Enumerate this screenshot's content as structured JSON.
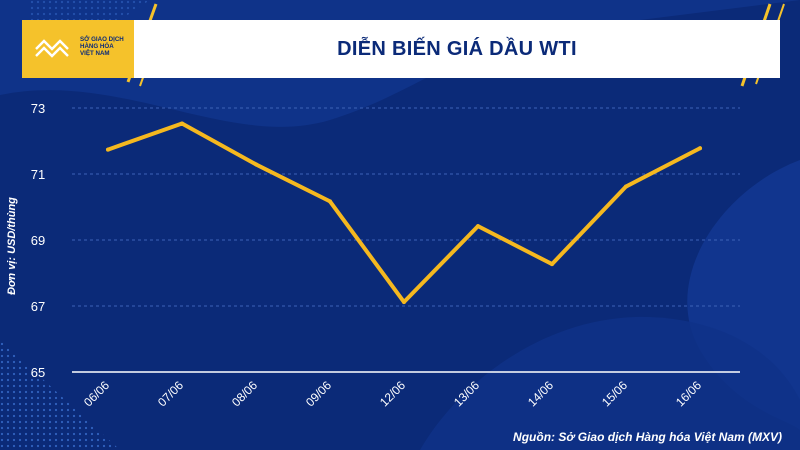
{
  "header": {
    "title": "DIỄN BIẾN GIÁ DẦU WTI",
    "logo_lines": [
      "SỞ GIAO DỊCH",
      "HÀNG HÓA",
      "VIỆT NAM"
    ]
  },
  "footer": {
    "source": "Nguồn: Sở Giao dịch Hàng hóa Việt Nam (MXV)"
  },
  "colors": {
    "background": "#0b2a78",
    "line": "#f5b81f",
    "accent": "#f5c22b",
    "text": "#ffffff"
  },
  "chart_data": {
    "type": "line",
    "title": "DIỄN BIẾN GIÁ DẦU WTI",
    "ylabel": "Đơn vị: USD/thùng",
    "xlabel": "",
    "categories": [
      "06/06",
      "07/06",
      "08/06",
      "09/06",
      "12/06",
      "13/06",
      "14/06",
      "15/06",
      "16/06"
    ],
    "series": [
      {
        "values": [
          71.74,
          72.53,
          71.29,
          70.17,
          67.12,
          69.42,
          68.27,
          70.62,
          71.78
        ]
      }
    ],
    "yticks": [
      65,
      67,
      69,
      71,
      73
    ],
    "ylim": [
      65,
      73
    ],
    "grid": true,
    "legend": "none"
  }
}
